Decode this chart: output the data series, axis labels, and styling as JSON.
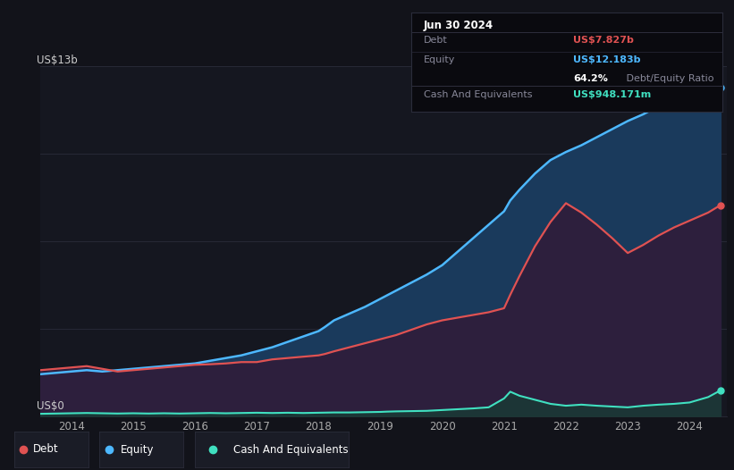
{
  "bg_color": "#12131a",
  "chart_bg": "#151720",
  "debt_color": "#e05252",
  "equity_color": "#4db8ff",
  "cash_color": "#40e0c0",
  "equity_fill_color": "#1a3a5c",
  "debt_fill_color": "#2d1f3d",
  "cash_fill_color": "#1a3a35",
  "y_label_top": "US$13b",
  "y_label_bottom": "US$0",
  "x_ticks": [
    2014,
    2015,
    2016,
    2017,
    2018,
    2019,
    2020,
    2021,
    2022,
    2023,
    2024
  ],
  "equity_data_x": [
    2013.5,
    2013.75,
    2014.0,
    2014.25,
    2014.5,
    2014.75,
    2015.0,
    2015.25,
    2015.5,
    2015.75,
    2016.0,
    2016.25,
    2016.5,
    2016.75,
    2017.0,
    2017.25,
    2017.5,
    2017.75,
    2018.0,
    2018.1,
    2018.25,
    2018.5,
    2018.75,
    2019.0,
    2019.25,
    2019.5,
    2019.75,
    2020.0,
    2020.25,
    2020.5,
    2020.75,
    2021.0,
    2021.1,
    2021.25,
    2021.5,
    2021.75,
    2022.0,
    2022.25,
    2022.5,
    2022.75,
    2023.0,
    2023.25,
    2023.5,
    2023.75,
    2024.0,
    2024.3,
    2024.5
  ],
  "equity_data_y": [
    1.55,
    1.6,
    1.65,
    1.7,
    1.65,
    1.7,
    1.75,
    1.8,
    1.85,
    1.9,
    1.95,
    2.05,
    2.15,
    2.25,
    2.4,
    2.55,
    2.75,
    2.95,
    3.15,
    3.3,
    3.55,
    3.8,
    4.05,
    4.35,
    4.65,
    4.95,
    5.25,
    5.6,
    6.1,
    6.6,
    7.1,
    7.6,
    8.0,
    8.4,
    9.0,
    9.5,
    9.8,
    10.05,
    10.35,
    10.65,
    10.95,
    11.2,
    11.5,
    11.8,
    12.05,
    12.15,
    12.183
  ],
  "debt_data_x": [
    2013.5,
    2013.75,
    2014.0,
    2014.25,
    2014.5,
    2014.75,
    2015.0,
    2015.25,
    2015.5,
    2015.75,
    2016.0,
    2016.25,
    2016.5,
    2016.75,
    2017.0,
    2017.25,
    2017.5,
    2017.75,
    2018.0,
    2018.1,
    2018.25,
    2018.5,
    2018.75,
    2019.0,
    2019.25,
    2019.5,
    2019.75,
    2020.0,
    2020.25,
    2020.5,
    2020.75,
    2021.0,
    2021.1,
    2021.25,
    2021.5,
    2021.75,
    2022.0,
    2022.25,
    2022.5,
    2022.75,
    2023.0,
    2023.25,
    2023.5,
    2023.75,
    2024.0,
    2024.3,
    2024.5
  ],
  "debt_data_y": [
    1.7,
    1.75,
    1.8,
    1.85,
    1.75,
    1.65,
    1.7,
    1.75,
    1.8,
    1.85,
    1.9,
    1.92,
    1.95,
    2.0,
    2.0,
    2.1,
    2.15,
    2.2,
    2.25,
    2.3,
    2.4,
    2.55,
    2.7,
    2.85,
    3.0,
    3.2,
    3.4,
    3.55,
    3.65,
    3.75,
    3.85,
    4.0,
    4.5,
    5.2,
    6.3,
    7.2,
    7.9,
    7.55,
    7.1,
    6.6,
    6.05,
    6.35,
    6.7,
    7.0,
    7.25,
    7.55,
    7.827
  ],
  "cash_data_x": [
    2013.5,
    2013.75,
    2014.0,
    2014.25,
    2014.5,
    2014.75,
    2015.0,
    2015.25,
    2015.5,
    2015.75,
    2016.0,
    2016.25,
    2016.5,
    2016.75,
    2017.0,
    2017.25,
    2017.5,
    2017.75,
    2018.0,
    2018.25,
    2018.5,
    2018.75,
    2019.0,
    2019.1,
    2019.25,
    2019.5,
    2019.75,
    2020.0,
    2020.25,
    2020.5,
    2020.75,
    2021.0,
    2021.1,
    2021.25,
    2021.5,
    2021.75,
    2022.0,
    2022.25,
    2022.5,
    2022.75,
    2023.0,
    2023.25,
    2023.5,
    2023.75,
    2024.0,
    2024.3,
    2024.5
  ],
  "cash_data_y": [
    0.08,
    0.09,
    0.1,
    0.11,
    0.1,
    0.09,
    0.1,
    0.09,
    0.1,
    0.09,
    0.1,
    0.11,
    0.1,
    0.11,
    0.12,
    0.11,
    0.12,
    0.11,
    0.12,
    0.13,
    0.13,
    0.14,
    0.15,
    0.16,
    0.17,
    0.18,
    0.19,
    0.22,
    0.25,
    0.28,
    0.32,
    0.65,
    0.9,
    0.75,
    0.6,
    0.45,
    0.38,
    0.42,
    0.38,
    0.35,
    0.32,
    0.38,
    0.42,
    0.45,
    0.5,
    0.7,
    0.948
  ],
  "ylim_min": 0,
  "ylim_max": 13,
  "xlim_min": 2013.5,
  "xlim_max": 2024.6,
  "grid_color": "#2a2c3a",
  "tooltip_bg": "#0a0a0f",
  "tooltip_border": "#2a2c3a",
  "title_text": "Jun 30 2024",
  "debt_label": "Debt",
  "debt_value": "US$7.827b",
  "equity_label": "Equity",
  "equity_value": "US$12.183b",
  "ratio_bold": "64.2%",
  "ratio_rest": " Debt/Equity Ratio",
  "cash_label": "Cash And Equivalents",
  "cash_value": "US$948.171m",
  "legend_bg": "#1a1c26",
  "legend_border": "#2a2c3a",
  "text_muted": "#888899",
  "text_white": "#ffffff"
}
